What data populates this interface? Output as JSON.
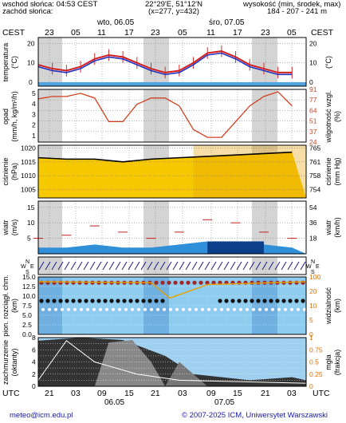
{
  "header": {
    "sunrise": "wschód słońca: 04:53 CEST",
    "sunset": "zachód słońca:",
    "coords": "22°29'E, 51°12'N",
    "grid": "(x=277, y=432)",
    "elevation_title": "wysokość (min, środek, max)",
    "elevation_values": "184 - 207 - 241 m"
  },
  "top_axis": {
    "tz_left": "CEST",
    "tz_right": "CEST",
    "day1": "wto, 06.05",
    "day2": "śro, 07.05",
    "hours": [
      "23",
      "05",
      "11",
      "17",
      "23",
      "05",
      "11",
      "17",
      "23",
      "05"
    ]
  },
  "bottom_axis": {
    "tz_left": "UTC",
    "tz_right": "UTC",
    "hours": [
      "21",
      "03",
      "09",
      "15",
      "21",
      "03",
      "09",
      "15",
      "21",
      "03"
    ],
    "day1": "06.05",
    "day2": "07.05"
  },
  "footer": {
    "email": "meteo@icm.edu.pl",
    "copyright": "© 2007-2025 ICM, Uniwersytet Warszawski"
  },
  "panels": {
    "temperature": {
      "label": "temperatura",
      "unit_left": "(°C)",
      "unit_right": "(°C)",
      "ticks": [
        "0",
        "10",
        "20"
      ]
    },
    "precip": {
      "label": "opad",
      "unit": "(mm/h, kg/m²/h)",
      "label_right": "wilgotność wzgl.",
      "unit_right": "(%)",
      "ticks_left": [
        "1",
        "2",
        "3",
        "4",
        "5"
      ],
      "ticks_right": [
        "24",
        "37",
        "51",
        "64",
        "77",
        "91"
      ]
    },
    "pressure": {
      "label": "ciśnienie",
      "unit": "(hPa)",
      "label_right": "ciśnienie",
      "unit_right": "(mm Hg)",
      "ticks_left": [
        "1005",
        "1010",
        "1015",
        "1020"
      ],
      "ticks_right": [
        "754",
        "758",
        "761",
        "765"
      ]
    },
    "wind": {
      "label": "wiatr",
      "unit": "(m/s)",
      "label_right": "wiatr",
      "unit_right": "(km/h)",
      "ticks_left": [
        "5",
        "10",
        "15"
      ],
      "ticks_right": [
        "18",
        "36",
        "54"
      ]
    },
    "direction": {
      "compass": [
        "N",
        "W",
        "E",
        "S"
      ]
    },
    "clouds": {
      "label": "pion. rozciągł. chm.",
      "unit": "(km)",
      "label_right": "widzialność",
      "unit_right": "(km)",
      "ticks_left": [
        "0.0",
        "2.5",
        "5.0",
        "7.5",
        "10.0",
        "12.5",
        "15.0"
      ],
      "ticks_right": [
        "0",
        "5",
        "10",
        "20",
        "100"
      ]
    },
    "cloudcover": {
      "label": "zachmurzenie",
      "unit": "(oktanty)",
      "label_right": "mgła",
      "unit_right": "(frakcja)",
      "ticks_left": [
        "0",
        "2",
        "4",
        "6",
        "8"
      ],
      "ticks_right": [
        "0",
        "0.25",
        "0.5",
        "0.75",
        "1"
      ]
    }
  },
  "chart_data": [
    {
      "type": "line",
      "title": "temperatura",
      "x_hours": [
        0,
        3,
        6,
        9,
        12,
        15,
        18,
        21,
        24,
        27,
        30,
        33,
        36,
        39,
        42,
        45,
        48,
        51,
        54
      ],
      "series": [
        {
          "name": "temperatura",
          "values": [
            9,
            7,
            6,
            8,
            12,
            14,
            13,
            10,
            7,
            5,
            6,
            10,
            15,
            16,
            13,
            9,
            7,
            5,
            5
          ]
        },
        {
          "name": "temperatura odczuwalna",
          "values": [
            8,
            6,
            5,
            7,
            11,
            13,
            12,
            9,
            6,
            4,
            5,
            9,
            14,
            15,
            12,
            8,
            6,
            4,
            4
          ]
        }
      ],
      "ylim": [
        -2,
        23
      ]
    },
    {
      "type": "line",
      "title": "wilgotność wzgl.",
      "x_hours": [
        0,
        3,
        6,
        9,
        12,
        15,
        18,
        21,
        24,
        27,
        30,
        33,
        36,
        39,
        42,
        45,
        48,
        51,
        54
      ],
      "series": [
        {
          "name": "wilgotność",
          "values": [
            79,
            82,
            82,
            86,
            80,
            50,
            50,
            72,
            80,
            80,
            70,
            40,
            30,
            30,
            50,
            70,
            82,
            88,
            70
          ]
        }
      ],
      "ylim": [
        24,
        91
      ]
    },
    {
      "type": "line",
      "title": "ciśnienie",
      "x_hours": [
        0,
        6,
        12,
        18,
        24,
        30,
        36,
        42,
        48,
        54
      ],
      "series": [
        {
          "name": "ciśnienie",
          "values": [
            1016.5,
            1016,
            1016,
            1015,
            1016,
            1016.5,
            1017,
            1017.5,
            1018,
            1018.5
          ]
        }
      ],
      "ylim": [
        1002,
        1021
      ]
    },
    {
      "type": "area",
      "title": "wiatr",
      "x_hours": [
        0,
        6,
        12,
        18,
        24,
        30,
        36,
        42,
        48,
        54
      ],
      "series": [
        {
          "name": "prędkość",
          "values": [
            2,
            2,
            3,
            2,
            2,
            3,
            4,
            4,
            3,
            2
          ]
        },
        {
          "name": "porywy",
          "values": [
            5,
            6,
            9,
            7,
            5,
            7,
            11,
            10,
            7,
            5
          ]
        }
      ],
      "ylim": [
        0,
        17
      ]
    }
  ]
}
